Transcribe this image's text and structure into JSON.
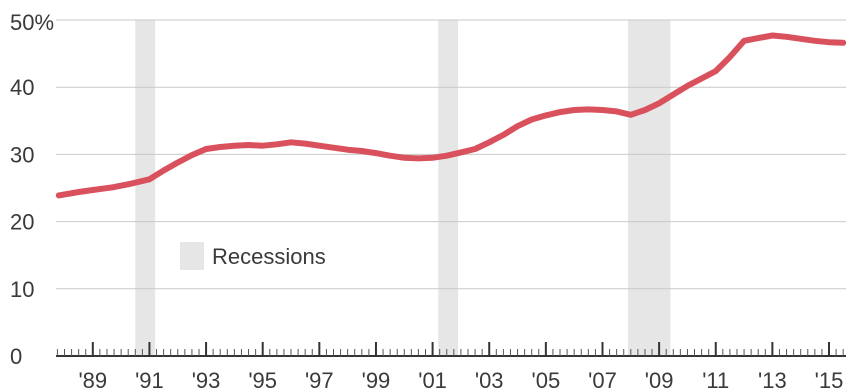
{
  "chart_data": {
    "type": "line",
    "title": "",
    "xlabel": "",
    "ylabel": "",
    "ylim": [
      0,
      50
    ],
    "xlim": [
      1987.7,
      2015.6
    ],
    "y_ticks": [
      0,
      10,
      20,
      30,
      40,
      50
    ],
    "y_tick_labels": [
      "0",
      "10",
      "20",
      "30",
      "40",
      "50"
    ],
    "y_top_unit": "%",
    "x_ticks": [
      1989,
      1991,
      1993,
      1995,
      1997,
      1999,
      2001,
      2003,
      2005,
      2007,
      2009,
      2011,
      2013,
      2015
    ],
    "x_tick_labels": [
      "'89",
      "'91",
      "'93",
      "'95",
      "'97",
      "'99",
      "'01",
      "'03",
      "'05",
      "'07",
      "'09",
      "'11",
      "'13",
      "'15"
    ],
    "grid": true,
    "line_color": "#d9515c",
    "recession_color": "#e6e6e6",
    "recessions": [
      [
        1990.5,
        1991.2
      ],
      [
        2001.2,
        2001.9
      ],
      [
        2007.9,
        2009.4
      ]
    ],
    "legend": {
      "label": "Recessions",
      "placement": "center-left"
    },
    "series": [
      {
        "x": [
          1987.8,
          1988.5,
          1989,
          1989.7,
          1990.3,
          1991,
          1991.5,
          1992,
          1992.5,
          1993,
          1993.5,
          1994,
          1994.5,
          1995,
          1995.5,
          1996,
          1996.5,
          1997,
          1997.5,
          1998,
          1998.5,
          1999,
          1999.5,
          2000,
          2000.5,
          2001,
          2001.5,
          2002,
          2002.5,
          2003,
          2003.5,
          2004,
          2004.5,
          2005,
          2005.5,
          2006,
          2006.5,
          2007,
          2007.5,
          2008,
          2008.5,
          2009,
          2009.5,
          2010,
          2010.5,
          2011,
          2011.5,
          2012,
          2012.5,
          2013,
          2013.5,
          2014,
          2014.5,
          2015,
          2015.5
        ],
        "values": [
          23.9,
          24.4,
          24.7,
          25.1,
          25.6,
          26.3,
          27.6,
          28.8,
          29.9,
          30.8,
          31.1,
          31.3,
          31.4,
          31.3,
          31.5,
          31.8,
          31.6,
          31.3,
          31.0,
          30.7,
          30.5,
          30.2,
          29.8,
          29.5,
          29.4,
          29.5,
          29.8,
          30.3,
          30.8,
          31.8,
          32.9,
          34.2,
          35.2,
          35.8,
          36.3,
          36.6,
          36.7,
          36.6,
          36.4,
          35.9,
          36.6,
          37.6,
          38.9,
          40.2,
          41.3,
          42.4,
          44.5,
          46.9,
          47.3,
          47.7,
          47.5,
          47.2,
          46.9,
          46.7,
          46.6
        ]
      }
    ]
  }
}
